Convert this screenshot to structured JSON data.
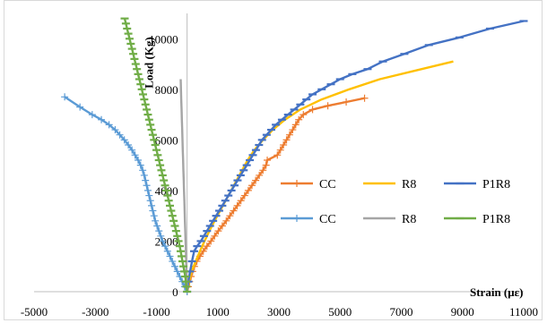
{
  "chart_data": {
    "type": "line",
    "xlabel": "Strain (με)",
    "ylabel": "Load (Kg)",
    "xlim": [
      -5000,
      11000
    ],
    "ylim": [
      0,
      11000
    ],
    "x_ticks": [
      "-5000",
      "-3000",
      "-1000",
      "1000",
      "3000",
      "5000",
      "7000",
      "9000",
      "11000"
    ],
    "y_ticks": [
      "0",
      "2000",
      "4000",
      "6000",
      "8000",
      "10000"
    ],
    "grid": false,
    "legend": {
      "placement": "center-right",
      "columns": 3,
      "entries": [
        {
          "series": 0,
          "label": "CC"
        },
        {
          "series": 1,
          "label": "R8"
        },
        {
          "series": 2,
          "label": "P1R8"
        },
        {
          "series": 3,
          "label": "CC"
        },
        {
          "series": 4,
          "label": "R8"
        },
        {
          "series": 5,
          "label": "P1R8"
        }
      ]
    },
    "series": [
      {
        "name": "CC",
        "color": "#ED7D31",
        "marker": "plus",
        "points": [
          [
            0,
            0
          ],
          [
            40,
            200
          ],
          [
            80,
            400
          ],
          [
            130,
            600
          ],
          [
            180,
            800
          ],
          [
            240,
            1000
          ],
          [
            320,
            1200
          ],
          [
            420,
            1400
          ],
          [
            530,
            1600
          ],
          [
            650,
            1800
          ],
          [
            780,
            2000
          ],
          [
            900,
            2200
          ],
          [
            1020,
            2400
          ],
          [
            1150,
            2600
          ],
          [
            1280,
            2800
          ],
          [
            1400,
            3000
          ],
          [
            1520,
            3200
          ],
          [
            1640,
            3400
          ],
          [
            1760,
            3600
          ],
          [
            1880,
            3800
          ],
          [
            2000,
            4000
          ],
          [
            2120,
            4200
          ],
          [
            2240,
            4400
          ],
          [
            2360,
            4600
          ],
          [
            2480,
            4800
          ],
          [
            2580,
            5000
          ],
          [
            2620,
            5200
          ],
          [
            2950,
            5400
          ],
          [
            3050,
            5600
          ],
          [
            3150,
            5800
          ],
          [
            3250,
            6000
          ],
          [
            3350,
            6200
          ],
          [
            3450,
            6400
          ],
          [
            3550,
            6600
          ],
          [
            3650,
            6800
          ],
          [
            3800,
            7000
          ],
          [
            4100,
            7200
          ],
          [
            4600,
            7350
          ],
          [
            5200,
            7500
          ],
          [
            5800,
            7650
          ]
        ]
      },
      {
        "name": "R8",
        "color": "#FFC000",
        "marker": "none",
        "points": [
          [
            0,
            0
          ],
          [
            60,
            400
          ],
          [
            150,
            800
          ],
          [
            280,
            1200
          ],
          [
            420,
            1600
          ],
          [
            570,
            2000
          ],
          [
            730,
            2400
          ],
          [
            900,
            2800
          ],
          [
            1080,
            3200
          ],
          [
            1260,
            3600
          ],
          [
            1440,
            4000
          ],
          [
            1620,
            4400
          ],
          [
            1800,
            4800
          ],
          [
            1980,
            5200
          ],
          [
            2200,
            5600
          ],
          [
            2480,
            6000
          ],
          [
            2800,
            6400
          ],
          [
            3200,
            6800
          ],
          [
            3700,
            7200
          ],
          [
            4400,
            7600
          ],
          [
            5300,
            8000
          ],
          [
            6300,
            8400
          ],
          [
            7500,
            8750
          ],
          [
            8700,
            9100
          ]
        ]
      },
      {
        "name": "P1R8",
        "color": "#4472C4",
        "marker": "dash",
        "points": [
          [
            0,
            0
          ],
          [
            40,
            400
          ],
          [
            100,
            800
          ],
          [
            160,
            1200
          ],
          [
            230,
            1600
          ],
          [
            330,
            1800
          ],
          [
            450,
            2000
          ],
          [
            550,
            2200
          ],
          [
            650,
            2400
          ],
          [
            750,
            2600
          ],
          [
            850,
            2800
          ],
          [
            950,
            3000
          ],
          [
            1050,
            3200
          ],
          [
            1150,
            3400
          ],
          [
            1250,
            3600
          ],
          [
            1350,
            3800
          ],
          [
            1450,
            4000
          ],
          [
            1550,
            4200
          ],
          [
            1650,
            4400
          ],
          [
            1750,
            4600
          ],
          [
            1850,
            4800
          ],
          [
            1950,
            5000
          ],
          [
            2050,
            5200
          ],
          [
            2150,
            5400
          ],
          [
            2250,
            5600
          ],
          [
            2350,
            5800
          ],
          [
            2450,
            6000
          ],
          [
            2600,
            6200
          ],
          [
            2750,
            6400
          ],
          [
            2900,
            6600
          ],
          [
            3100,
            6800
          ],
          [
            3300,
            7000
          ],
          [
            3500,
            7200
          ],
          [
            3700,
            7400
          ],
          [
            3900,
            7600
          ],
          [
            4100,
            7800
          ],
          [
            4400,
            8000
          ],
          [
            4700,
            8200
          ],
          [
            5000,
            8400
          ],
          [
            5400,
            8600
          ],
          [
            5900,
            8800
          ],
          [
            6400,
            9100
          ],
          [
            7100,
            9400
          ],
          [
            7900,
            9750
          ],
          [
            8900,
            10050
          ],
          [
            9900,
            10400
          ],
          [
            11000,
            10700
          ]
        ]
      },
      {
        "name": "CC",
        "color": "#5B9BD5",
        "marker": "plus",
        "points": [
          [
            0,
            0
          ],
          [
            -80,
            200
          ],
          [
            -160,
            400
          ],
          [
            -240,
            600
          ],
          [
            -320,
            800
          ],
          [
            -400,
            1000
          ],
          [
            -480,
            1200
          ],
          [
            -560,
            1400
          ],
          [
            -640,
            1600
          ],
          [
            -720,
            1800
          ],
          [
            -800,
            2000
          ],
          [
            -860,
            2200
          ],
          [
            -920,
            2400
          ],
          [
            -980,
            2600
          ],
          [
            -1040,
            2800
          ],
          [
            -1080,
            3000
          ],
          [
            -1120,
            3200
          ],
          [
            -1160,
            3400
          ],
          [
            -1200,
            3600
          ],
          [
            -1240,
            3800
          ],
          [
            -1280,
            4000
          ],
          [
            -1320,
            4200
          ],
          [
            -1360,
            4400
          ],
          [
            -1400,
            4600
          ],
          [
            -1450,
            4800
          ],
          [
            -1520,
            5000
          ],
          [
            -1600,
            5200
          ],
          [
            -1700,
            5400
          ],
          [
            -1800,
            5600
          ],
          [
            -1920,
            5800
          ],
          [
            -2050,
            6000
          ],
          [
            -2200,
            6200
          ],
          [
            -2350,
            6400
          ],
          [
            -2550,
            6600
          ],
          [
            -2800,
            6800
          ],
          [
            -3100,
            7000
          ],
          [
            -3500,
            7300
          ],
          [
            -4000,
            7700
          ]
        ]
      },
      {
        "name": "R8",
        "color": "#A5A5A5",
        "marker": "none",
        "points": [
          [
            0,
            0
          ],
          [
            -10,
            400
          ],
          [
            -20,
            800
          ],
          [
            -30,
            1200
          ],
          [
            -40,
            1600
          ],
          [
            -50,
            2000
          ],
          [
            -60,
            2400
          ],
          [
            -70,
            2800
          ],
          [
            -80,
            3200
          ],
          [
            -90,
            3600
          ],
          [
            -100,
            4000
          ],
          [
            -110,
            4400
          ],
          [
            -120,
            4800
          ],
          [
            -130,
            5200
          ],
          [
            -140,
            5600
          ],
          [
            -150,
            6000
          ],
          [
            -160,
            6400
          ],
          [
            -170,
            6800
          ],
          [
            -180,
            7200
          ],
          [
            -190,
            7600
          ],
          [
            -200,
            8000
          ],
          [
            -210,
            8400
          ]
        ]
      },
      {
        "name": "P1R8",
        "color": "#70AD47",
        "marker": "dash",
        "points": [
          [
            0,
            0
          ],
          [
            -20,
            200
          ],
          [
            -40,
            400
          ],
          [
            -60,
            600
          ],
          [
            -90,
            800
          ],
          [
            -120,
            1000
          ],
          [
            -150,
            1200
          ],
          [
            -180,
            1400
          ],
          [
            -210,
            1600
          ],
          [
            -240,
            1800
          ],
          [
            -280,
            2000
          ],
          [
            -320,
            2200
          ],
          [
            -360,
            2400
          ],
          [
            -400,
            2600
          ],
          [
            -440,
            2800
          ],
          [
            -480,
            3000
          ],
          [
            -520,
            3200
          ],
          [
            -560,
            3400
          ],
          [
            -600,
            3600
          ],
          [
            -640,
            3800
          ],
          [
            -680,
            4000
          ],
          [
            -720,
            4200
          ],
          [
            -760,
            4400
          ],
          [
            -800,
            4600
          ],
          [
            -840,
            4800
          ],
          [
            -880,
            5000
          ],
          [
            -920,
            5200
          ],
          [
            -960,
            5400
          ],
          [
            -1000,
            5600
          ],
          [
            -1040,
            5800
          ],
          [
            -1080,
            6000
          ],
          [
            -1120,
            6200
          ],
          [
            -1160,
            6400
          ],
          [
            -1200,
            6600
          ],
          [
            -1240,
            6800
          ],
          [
            -1280,
            7000
          ],
          [
            -1320,
            7200
          ],
          [
            -1360,
            7400
          ],
          [
            -1400,
            7600
          ],
          [
            -1440,
            7800
          ],
          [
            -1480,
            8000
          ],
          [
            -1520,
            8200
          ],
          [
            -1560,
            8400
          ],
          [
            -1600,
            8600
          ],
          [
            -1640,
            8800
          ],
          [
            -1680,
            9000
          ],
          [
            -1720,
            9200
          ],
          [
            -1760,
            9400
          ],
          [
            -1800,
            9600
          ],
          [
            -1840,
            9800
          ],
          [
            -1880,
            10000
          ],
          [
            -1920,
            10200
          ],
          [
            -1960,
            10400
          ],
          [
            -2000,
            10600
          ],
          [
            -2040,
            10800
          ]
        ]
      }
    ]
  }
}
